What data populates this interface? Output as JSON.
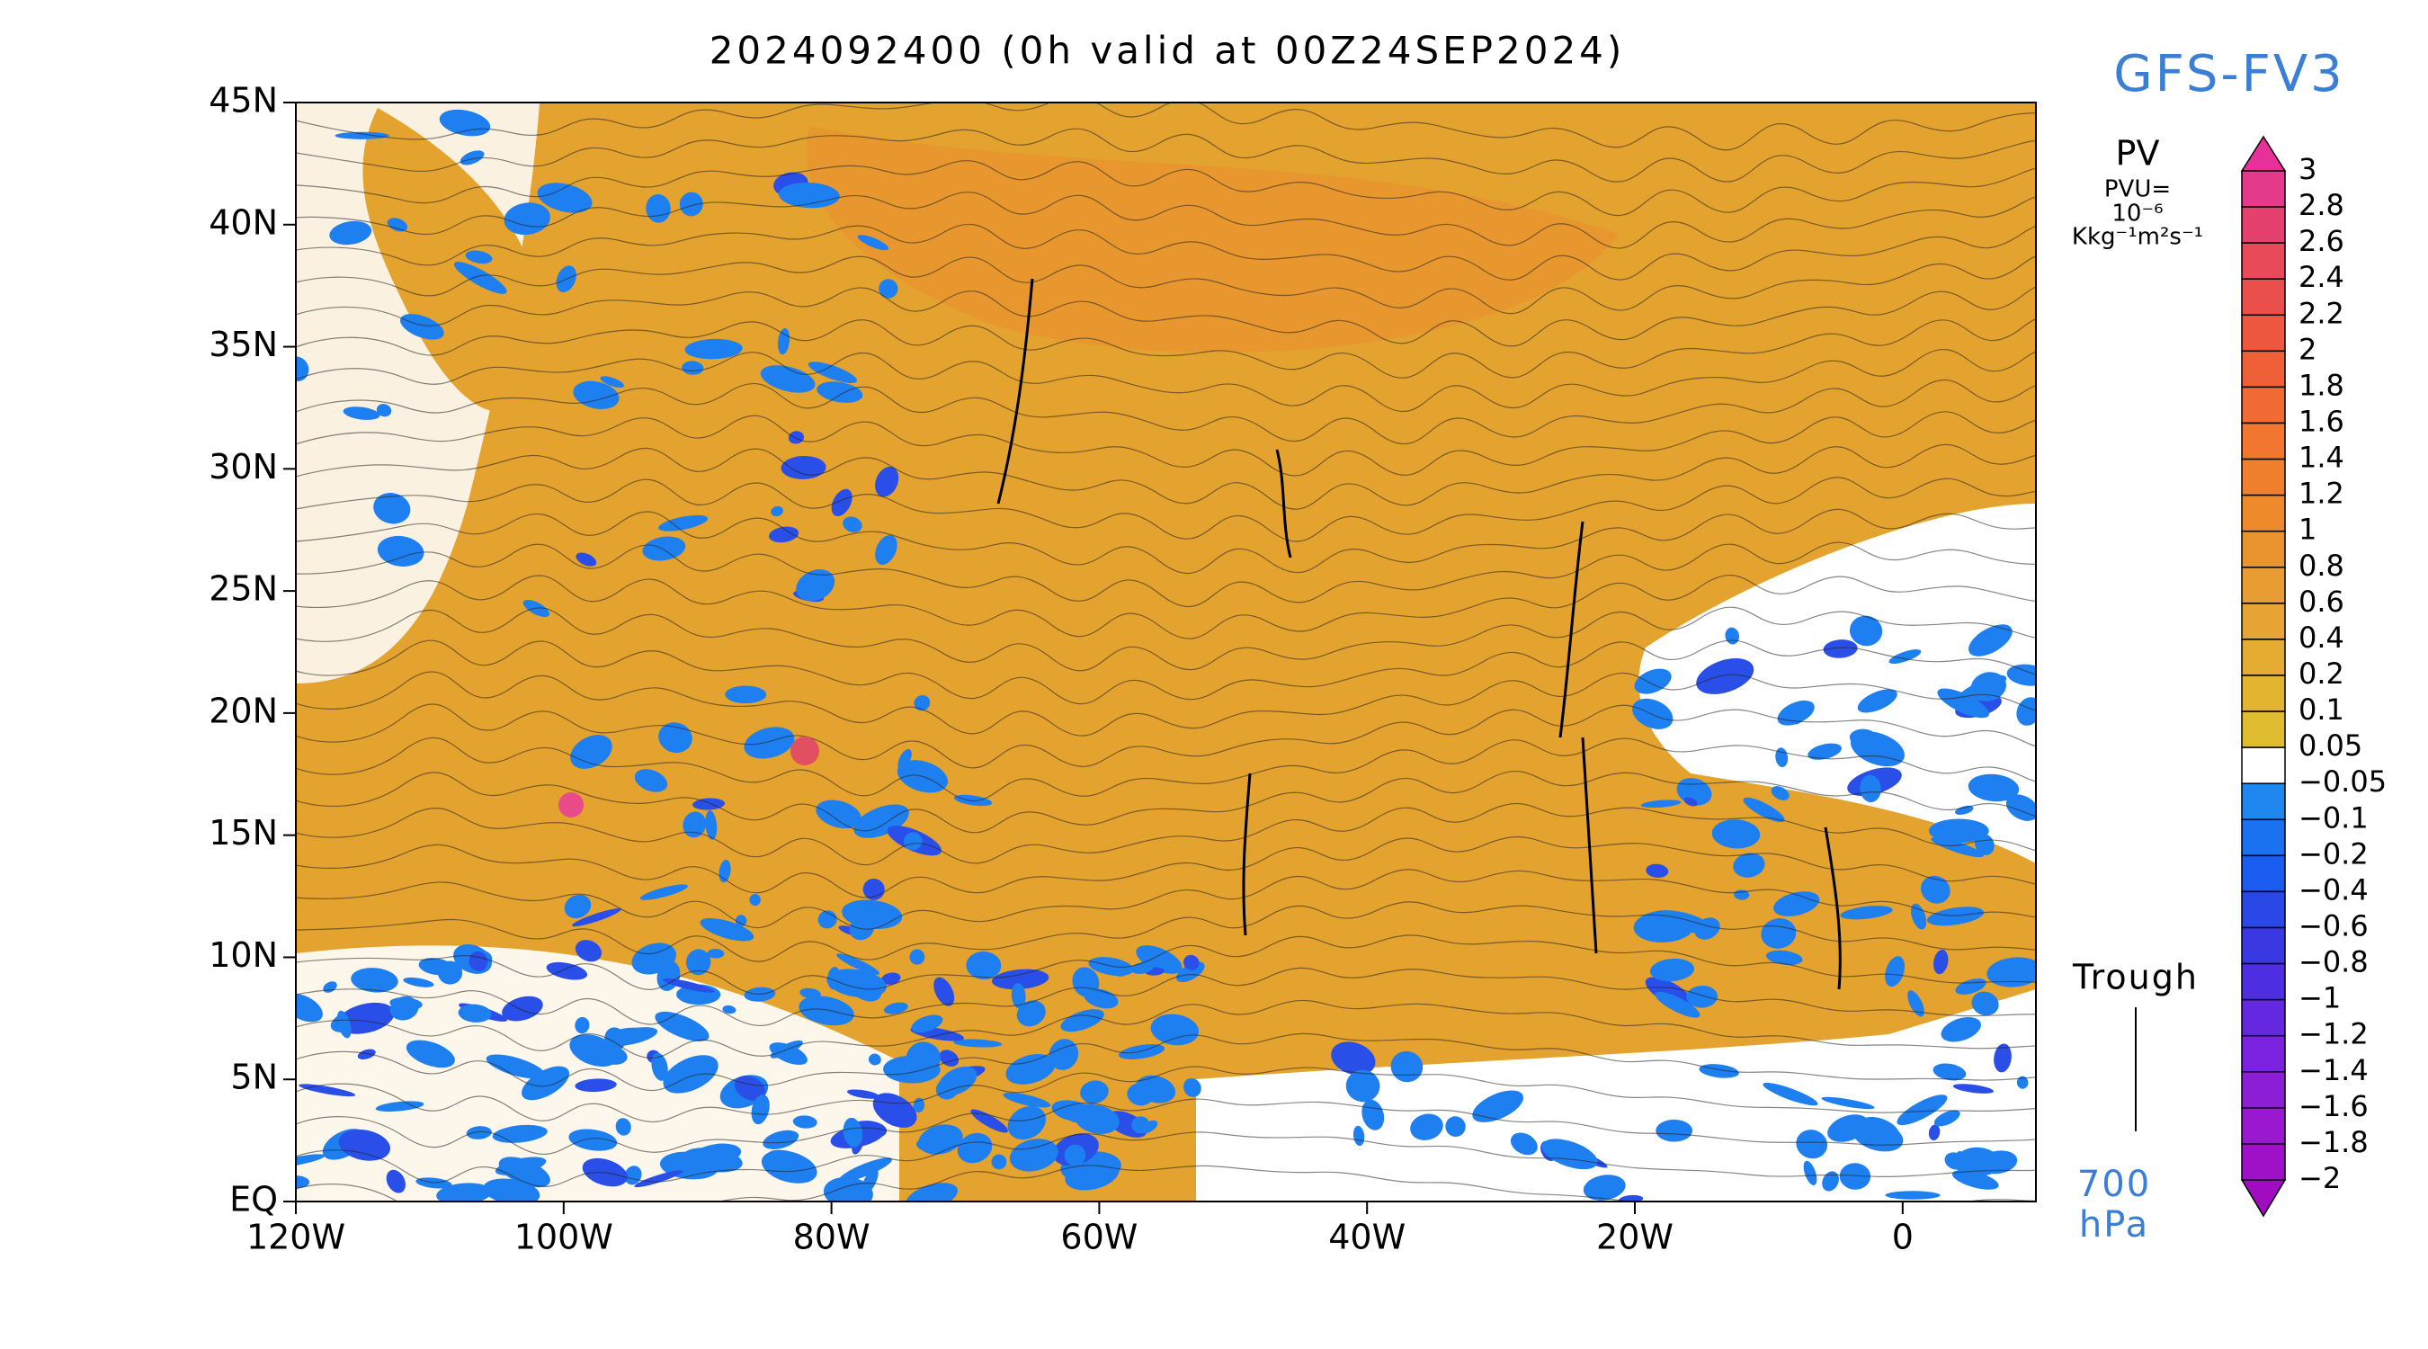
{
  "title": "2024092400 (0h valid at 00Z24SEP2024)",
  "model": "GFS-FV3",
  "colorbar": {
    "title": "PV",
    "units": [
      "PVU=",
      "10⁻⁶",
      "Kkg⁻¹m²s⁻¹"
    ],
    "labels": [
      "3",
      "2.8",
      "2.6",
      "2.4",
      "2.2",
      "2",
      "1.8",
      "1.6",
      "1.4",
      "1.2",
      "1",
      "0.8",
      "0.6",
      "0.4",
      "0.2",
      "0.1",
      "0.05",
      "−0.05",
      "−0.1",
      "−0.2",
      "−0.4",
      "−0.6",
      "−0.8",
      "−1",
      "−1.2",
      "−1.4",
      "−1.6",
      "−1.8",
      "−2"
    ],
    "colors": [
      "#e8309a",
      "#e53a8c",
      "#e5406e",
      "#e84a5a",
      "#ea4f4c",
      "#ee5840",
      "#f06038",
      "#f26a34",
      "#f27530",
      "#f0802e",
      "#ee8a2c",
      "#ea9430",
      "#e89c32",
      "#e6a434",
      "#e4ac30",
      "#e2b430",
      "#e0bc30",
      "#ffffff",
      "#1e88f0",
      "#1a72f0",
      "#1a5cf0",
      "#2a48e8",
      "#3a38e0",
      "#4e2ee0",
      "#6428e0",
      "#7a22e0",
      "#8c1ed8",
      "#9a18d0",
      "#a010c8",
      "#a00cc0"
    ]
  },
  "axes": {
    "y_labels": [
      "45N",
      "40N",
      "35N",
      "30N",
      "25N",
      "20N",
      "15N",
      "10N",
      "5N",
      "EQ"
    ],
    "x_labels": [
      "120W",
      "100W",
      "80W",
      "60W",
      "40W",
      "20W",
      "0"
    ]
  },
  "legend": {
    "label": "Trough"
  },
  "level": {
    "value": "700",
    "unit": "hPa"
  }
}
